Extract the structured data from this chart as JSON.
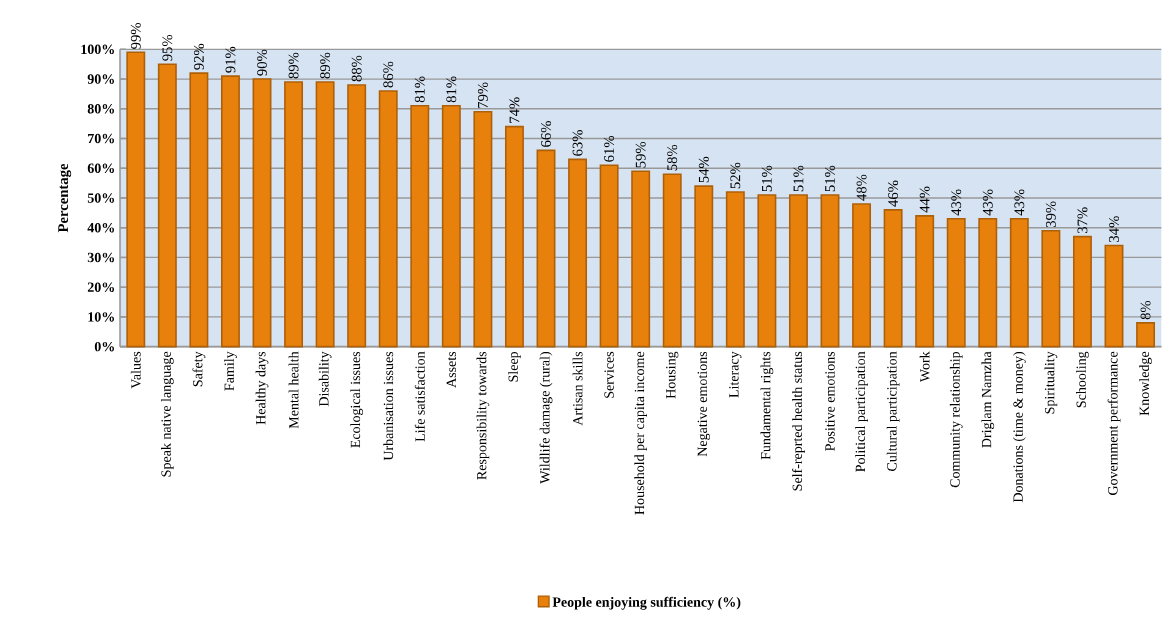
{
  "chart_data": {
    "type": "bar",
    "ylabel": "Percentage",
    "categories": [
      "Values",
      "Speak native language",
      "Safety",
      "Family",
      "Healthy days",
      "Mental health",
      "Disability",
      "Ecological issues",
      "Urbanisation issues",
      "Life satisfaction",
      "Assets",
      "Responsibility towards",
      "Sleep",
      "Wildlife damage (rural)",
      "Artisan skills",
      "Services",
      "Household per capita income",
      "Housing",
      "Negative emotions",
      "Literacy",
      "Fundamental rights",
      "Self-reprted health status",
      "Positive emotions",
      "Political participation",
      "Cultural participation",
      "Work",
      "Community relationship",
      "Driglam Namzha",
      "Donations (time & money)",
      "Spirituality",
      "Schooling",
      "Government performance",
      "Knowledge"
    ],
    "series": [
      {
        "name": "People enjoying sufficiency (%)",
        "color": "#e8800c",
        "values": [
          99,
          95,
          92,
          91,
          90,
          89,
          89,
          88,
          86,
          81,
          81,
          79,
          74,
          66,
          63,
          61,
          59,
          58,
          54,
          52,
          51,
          51,
          51,
          48,
          46,
          44,
          43,
          43,
          43,
          39,
          37,
          34,
          8
        ],
        "value_labels": [
          "99%",
          "95%",
          "92%",
          "91%",
          "90%",
          "89%",
          "89%",
          "88%",
          "86%",
          "81%",
          "81%",
          "79%",
          "74%",
          "66%",
          "63%",
          "61%",
          "59%",
          "58%",
          "54%",
          "52%",
          "51%",
          "51%",
          "51%",
          "48%",
          "46%",
          "44%",
          "43%",
          "43%",
          "43%",
          "39%",
          "37%",
          "34%",
          "8%"
        ]
      }
    ],
    "ylim": [
      0,
      100
    ],
    "yticks": [
      {
        "value": 0,
        "label": "0%"
      },
      {
        "value": 10,
        "label": "10%"
      },
      {
        "value": 20,
        "label": "20%"
      },
      {
        "value": 30,
        "label": "30%"
      },
      {
        "value": 40,
        "label": "40%"
      },
      {
        "value": 50,
        "label": "50%"
      },
      {
        "value": 60,
        "label": "60%"
      },
      {
        "value": 70,
        "label": "70%"
      },
      {
        "value": 80,
        "label": "80%"
      },
      {
        "value": 90,
        "label": "90%"
      },
      {
        "value": 100,
        "label": "100%"
      }
    ],
    "grid": "y",
    "legend": "bottom"
  }
}
